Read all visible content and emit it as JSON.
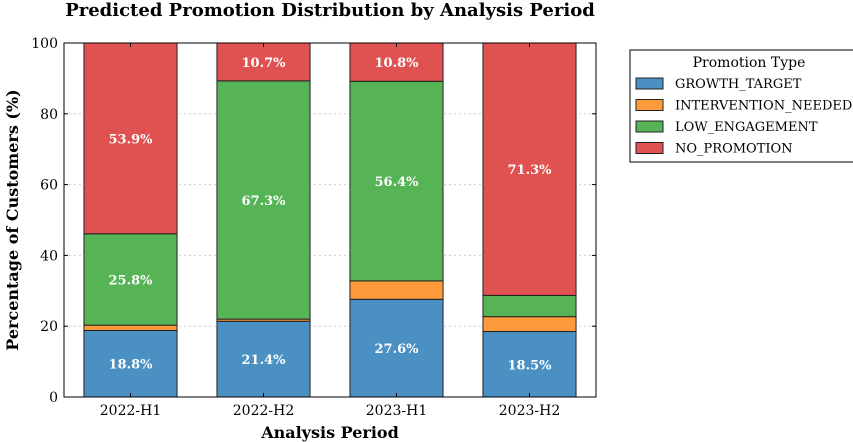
{
  "chart_data": {
    "type": "bar",
    "stacked": true,
    "title": "Predicted Promotion Distribution by Analysis Period",
    "xlabel": "Analysis Period",
    "ylabel": "Percentage of Customers (%)",
    "ylim": [
      0,
      100
    ],
    "yticks": [
      "0",
      "20",
      "40",
      "60",
      "80",
      "100"
    ],
    "grid": "horizontal dotted",
    "categories": [
      "2022-H1",
      "2022-H2",
      "2023-H1",
      "2023-H2"
    ],
    "series": [
      {
        "name": "GROWTH_TARGET",
        "color": "#4a90c2",
        "values": [
          18.8,
          21.4,
          27.6,
          18.5
        ],
        "labels": [
          "18.8%",
          "21.4%",
          "27.6%",
          "18.5%"
        ]
      },
      {
        "name": "INTERVENTION_NEEDED",
        "color": "#fd9a3c",
        "values": [
          1.5,
          0.6,
          5.2,
          4.2
        ],
        "labels": [
          "",
          "",
          "",
          ""
        ]
      },
      {
        "name": "LOW_ENGAGEMENT",
        "color": "#56b356",
        "values": [
          25.8,
          67.3,
          56.4,
          6.0
        ],
        "labels": [
          "25.8%",
          "67.3%",
          "56.4%",
          ""
        ]
      },
      {
        "name": "NO_PROMOTION",
        "color": "#e05252",
        "values": [
          53.9,
          10.7,
          10.8,
          71.3
        ],
        "labels": [
          "53.9%",
          "10.7%",
          "10.8%",
          "71.3%"
        ]
      }
    ],
    "legend": {
      "title": "Promotion Type",
      "placement": "outside right",
      "entries": [
        "GROWTH_TARGET",
        "INTERVENTION_NEEDED",
        "LOW_ENGAGEMENT",
        "NO_PROMOTION"
      ]
    }
  }
}
